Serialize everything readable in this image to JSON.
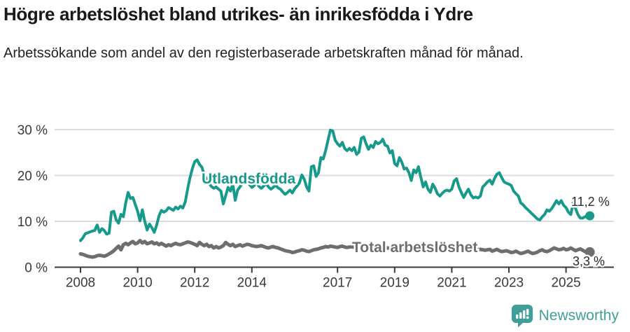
{
  "header": {
    "title": "Högre arbetslöshet bland utrikes- än inrikesfödda i Ydre",
    "subtitle": "Arbetssökande som andel av den registerbaserade arbetskraften månad för månad."
  },
  "chart_data": {
    "type": "line",
    "unit": "%",
    "frequency": "monthly",
    "x_start": "2008-01",
    "x_end": "2025-11",
    "grid": "horizontal-only",
    "legend_position": "inline-labels",
    "x_tick_years": [
      2008,
      2010,
      2012,
      2014,
      2017,
      2019,
      2021,
      2023,
      2025
    ],
    "x_tick_labels": [
      "2008",
      "2010",
      "2012",
      "2014",
      "2017",
      "2019",
      "2021",
      "2023",
      "2025"
    ],
    "y_ticks": [
      0,
      10,
      20,
      30
    ],
    "y_tick_labels": [
      "0 %",
      "10 %",
      "20 %",
      "30 %"
    ],
    "ylim": [
      0,
      31
    ],
    "colors": {
      "utlandsfodda": "#17998c",
      "total": "#6e6e6e",
      "grid": "#dcdcdc",
      "axis": "#3a3a3a",
      "value_label": "#2b2b2b"
    },
    "series": [
      {
        "name": "Utlandsfödda",
        "color": "#17998c",
        "end_value": 11.2,
        "end_label": "11,2 %",
        "values": [
          5.8,
          6.4,
          7.3,
          7.5,
          7.7,
          7.9,
          8.0,
          9.2,
          7.6,
          8.4,
          8.0,
          7.2,
          7.4,
          12.0,
          12.2,
          10.3,
          9.6,
          11.5,
          11.0,
          14.0,
          16.3,
          15.0,
          15.2,
          13.7,
          12.2,
          10.1,
          12.5,
          10.0,
          8.1,
          9.4,
          8.6,
          7.6,
          9.2,
          11.2,
          12.4,
          12.0,
          12.3,
          13.0,
          12.7,
          12.4,
          13.1,
          12.7,
          13.3,
          12.9,
          14.2,
          17.0,
          19.5,
          21.5,
          23.0,
          23.4,
          22.4,
          21.8,
          20.1,
          19.2,
          18.3,
          17.6,
          17.2,
          17.5,
          17.0,
          16.6,
          13.8,
          15.6,
          17.4,
          16.6,
          18.1,
          14.6,
          16.8,
          17.5,
          18.3,
          19.2,
          18.6,
          18.0,
          17.4,
          17.8,
          18.4,
          17.6,
          17.2,
          17.7,
          18.2,
          17.5,
          17.0,
          17.4,
          17.9,
          17.3,
          17.0,
          16.4,
          15.9,
          16.3,
          16.8,
          16.2,
          17.1,
          17.7,
          18.4,
          20.1,
          19.2,
          17.5,
          16.6,
          21.9,
          22.1,
          19.8,
          20.6,
          23.9,
          23.6,
          25.4,
          27.7,
          29.9,
          29.7,
          27.7,
          26.9,
          26.4,
          27.2,
          25.9,
          25.4,
          25.9,
          25.4,
          26.1,
          24.6,
          25.1,
          28.1,
          28.4,
          26.9,
          25.7,
          26.6,
          26.1,
          27.4,
          26.9,
          27.2,
          27.9,
          26.6,
          26.4,
          24.9,
          25.4,
          22.6,
          22.1,
          23.9,
          22.9,
          21.4,
          21.6,
          20.6,
          18.9,
          21.2,
          20.6,
          21.9,
          19.6,
          17.5,
          18.6,
          17.0,
          16.3,
          18.1,
          17.2,
          16.0,
          15.5,
          16.1,
          16.6,
          16.8,
          16.6,
          17.0,
          18.8,
          19.3,
          17.5,
          16.3,
          15.2,
          16.2,
          17.0,
          15.8,
          15.1,
          15.3,
          15.1,
          15.5,
          17.5,
          18.0,
          18.6,
          19.0,
          18.1,
          19.4,
          20.3,
          20.6,
          19.5,
          18.6,
          18.3,
          18.1,
          17.8,
          16.6,
          16.0,
          15.5,
          14.0,
          13.6,
          13.0,
          12.5,
          12.0,
          11.5,
          11.0,
          10.5,
          10.3,
          11.0,
          11.5,
          12.5,
          12.2,
          12.8,
          13.6,
          14.5,
          13.8,
          14.5,
          13.5,
          13.0,
          12.0,
          11.5,
          14.0,
          12.8,
          11.5,
          10.7,
          10.7,
          11.0,
          10.9,
          11.2
        ]
      },
      {
        "name": "Total arbetslöshet",
        "color": "#6e6e6e",
        "end_value": 3.3,
        "end_label": "3,3 %",
        "values": [
          2.9,
          2.8,
          2.6,
          2.4,
          2.3,
          2.2,
          2.3,
          2.5,
          2.6,
          2.5,
          2.4,
          2.6,
          2.9,
          3.2,
          3.6,
          4.1,
          4.6,
          3.8,
          4.9,
          5.2,
          4.9,
          5.3,
          5.6,
          5.1,
          5.3,
          5.8,
          5.3,
          5.6,
          5.1,
          5.3,
          5.5,
          5.1,
          5.3,
          4.9,
          5.2,
          4.9,
          4.6,
          4.9,
          4.7,
          5.0,
          5.2,
          5.0,
          4.9,
          5.1,
          5.3,
          5.5,
          5.4,
          5.2,
          5.0,
          4.7,
          5.4,
          5.0,
          4.7,
          5.0,
          4.5,
          4.7,
          4.2,
          4.5,
          4.2,
          4.4,
          4.7,
          5.4,
          5.0,
          4.7,
          5.0,
          4.5,
          4.7,
          4.9,
          4.6,
          4.8,
          5.0,
          4.9,
          4.7,
          4.6,
          4.5,
          4.6,
          4.7,
          4.5,
          4.3,
          4.2,
          4.4,
          4.5,
          4.3,
          4.2,
          4.0,
          3.8,
          3.6,
          3.5,
          3.4,
          3.2,
          3.3,
          3.5,
          3.6,
          3.8,
          3.7,
          3.5,
          3.4,
          3.6,
          3.8,
          3.9,
          4.0,
          4.2,
          4.3,
          4.5,
          4.4,
          4.6,
          4.5,
          4.4,
          4.3,
          4.5,
          4.6,
          4.4,
          4.3,
          4.4,
          4.5,
          4.3,
          4.2,
          4.4,
          4.5,
          4.6,
          4.4,
          4.3,
          4.2,
          4.3,
          4.4,
          4.2,
          4.1,
          4.2,
          4.3,
          4.2,
          4.1,
          4.0,
          3.9,
          4.0,
          4.1,
          4.0,
          3.9,
          3.8,
          3.9,
          4.0,
          3.9,
          3.8,
          3.9,
          4.0,
          3.9,
          4.1,
          4.4,
          4.6,
          4.5,
          4.4,
          4.3,
          4.2,
          4.1,
          4.0,
          3.9,
          3.8,
          3.9,
          4.0,
          4.1,
          4.0,
          3.9,
          3.8,
          3.9,
          4.0,
          3.9,
          3.8,
          3.7,
          3.8,
          3.9,
          3.8,
          3.7,
          3.8,
          3.9,
          3.5,
          3.7,
          3.9,
          3.6,
          3.4,
          3.5,
          3.6,
          3.4,
          3.2,
          3.3,
          3.5,
          3.2,
          3.0,
          3.1,
          3.3,
          3.5,
          3.2,
          3.0,
          3.1,
          3.3,
          3.6,
          3.8,
          3.5,
          3.4,
          3.6,
          3.9,
          4.2,
          4.0,
          3.8,
          3.9,
          4.1,
          3.8,
          3.9,
          4.2,
          3.9,
          3.6,
          3.8,
          4.0,
          3.7,
          3.4,
          3.2,
          3.3
        ]
      }
    ]
  },
  "footer": {
    "brand": "Newsworthy",
    "logo_icon": "newsworthy-bar-chart-bubble-icon",
    "brand_color": "#3f9f98"
  }
}
